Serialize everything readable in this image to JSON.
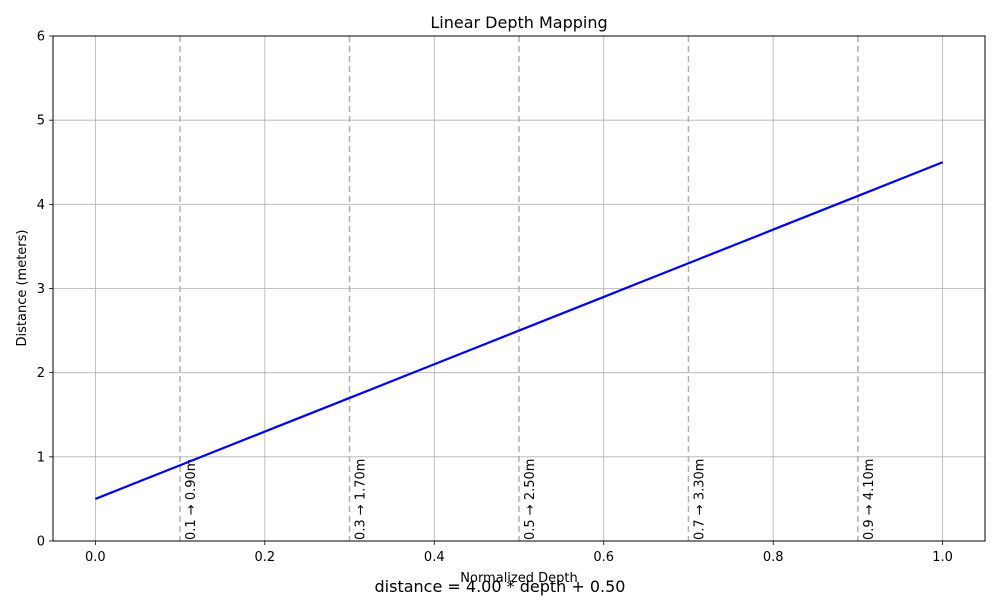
{
  "chart_data": {
    "type": "line",
    "title": "Linear Depth Mapping",
    "xlabel": "Normalized Depth",
    "ylabel": "Distance (meters)",
    "xlim": [
      -0.05,
      1.05
    ],
    "ylim": [
      0,
      6
    ],
    "x_ticks": [
      "0.0",
      "0.2",
      "0.4",
      "0.6",
      "0.8",
      "1.0"
    ],
    "y_ticks": [
      "0",
      "1",
      "2",
      "3",
      "4",
      "5",
      "6"
    ],
    "grid": true,
    "series": [
      {
        "x": [
          0.0,
          0.1,
          0.2,
          0.3,
          0.4,
          0.5,
          0.6,
          0.7,
          0.8,
          0.9,
          1.0
        ],
        "y": [
          0.5,
          0.9,
          1.3,
          1.7,
          2.1,
          2.5,
          2.9,
          3.3,
          3.7,
          4.1,
          4.5
        ],
        "color": "#0000ff"
      }
    ],
    "reference_lines": [
      {
        "x": 0.1,
        "label": "0.1 → 0.90m"
      },
      {
        "x": 0.3,
        "label": "0.3 → 1.70m"
      },
      {
        "x": 0.5,
        "label": "0.5 → 2.50m"
      },
      {
        "x": 0.7,
        "label": "0.7 → 3.30m"
      },
      {
        "x": 0.9,
        "label": "0.9 → 4.10m"
      }
    ],
    "reference_line_color": "#b0b0b0",
    "caption": "distance = 4.00 * depth + 0.50"
  }
}
